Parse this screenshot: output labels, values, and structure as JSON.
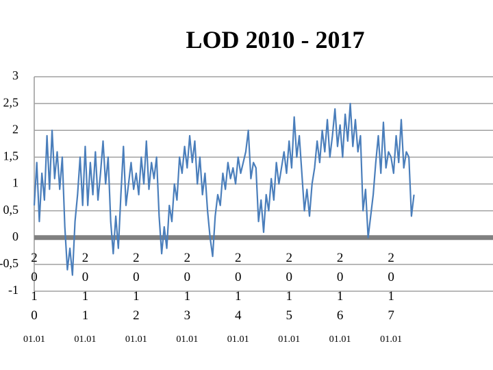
{
  "chart_data": {
    "type": "line",
    "title": "LOD 2010 - 2017",
    "x": [
      2010,
      2010.05,
      2010.1,
      2010.15,
      2010.2,
      2010.25,
      2010.3,
      2010.35,
      2010.4,
      2010.45,
      2010.5,
      2010.55,
      2010.6,
      2010.65,
      2010.7,
      2010.75,
      2010.8,
      2010.85,
      2010.9,
      2010.95,
      2011,
      2011.05,
      2011.1,
      2011.15,
      2011.2,
      2011.25,
      2011.3,
      2011.35,
      2011.4,
      2011.45,
      2011.5,
      2011.55,
      2011.6,
      2011.65,
      2011.7,
      2011.75,
      2011.8,
      2011.85,
      2011.9,
      2011.95,
      2012,
      2012.05,
      2012.1,
      2012.15,
      2012.2,
      2012.25,
      2012.3,
      2012.35,
      2012.4,
      2012.45,
      2012.5,
      2012.55,
      2012.6,
      2012.65,
      2012.7,
      2012.75,
      2012.8,
      2012.85,
      2012.9,
      2012.95,
      2013,
      2013.05,
      2013.1,
      2013.15,
      2013.2,
      2013.25,
      2013.3,
      2013.35,
      2013.4,
      2013.45,
      2013.5,
      2013.55,
      2013.6,
      2013.65,
      2013.7,
      2013.75,
      2013.8,
      2013.85,
      2013.9,
      2013.95,
      2014,
      2014.05,
      2014.1,
      2014.15,
      2014.2,
      2014.25,
      2014.3,
      2014.35,
      2014.4,
      2014.45,
      2014.5,
      2014.55,
      2014.6,
      2014.65,
      2014.7,
      2014.75,
      2014.8,
      2014.85,
      2014.9,
      2014.95,
      2015,
      2015.05,
      2015.1,
      2015.15,
      2015.2,
      2015.25,
      2015.3,
      2015.35,
      2015.4,
      2015.45,
      2015.5,
      2015.55,
      2015.6,
      2015.65,
      2015.7,
      2015.75,
      2015.8,
      2015.85,
      2015.9,
      2015.95,
      2016,
      2016.05,
      2016.1,
      2016.15,
      2016.2,
      2016.25,
      2016.3,
      2016.35,
      2016.4,
      2016.45,
      2016.5,
      2016.55,
      2016.6,
      2016.65,
      2016.7,
      2016.75,
      2016.8,
      2016.85,
      2016.9,
      2016.95,
      2017,
      2017.05,
      2017.1,
      2017.15,
      2017.2,
      2017.25,
      2017.3,
      2017.35,
      2017.4,
      2017.45
    ],
    "series": [
      {
        "color": "#4a7ebb",
        "values": [
          0.6,
          1.4,
          0.3,
          1.2,
          0.7,
          1.9,
          0.9,
          2.0,
          1.1,
          1.6,
          0.9,
          1.5,
          0.2,
          -0.6,
          -0.2,
          -0.7,
          0.3,
          0.8,
          1.5,
          0.6,
          1.7,
          0.6,
          1.4,
          0.8,
          1.6,
          0.7,
          1.2,
          1.8,
          1.0,
          1.5,
          0.3,
          -0.3,
          0.4,
          -0.2,
          0.8,
          1.7,
          0.6,
          1.0,
          1.4,
          0.9,
          1.2,
          0.8,
          1.5,
          1.0,
          1.8,
          0.9,
          1.4,
          1.1,
          1.5,
          0.4,
          -0.3,
          0.2,
          -0.2,
          0.6,
          0.3,
          1.0,
          0.7,
          1.5,
          1.2,
          1.7,
          1.3,
          1.9,
          1.4,
          1.8,
          1.0,
          1.5,
          0.8,
          1.2,
          0.5,
          0.0,
          -0.35,
          0.4,
          0.8,
          0.6,
          1.2,
          0.9,
          1.4,
          1.1,
          1.3,
          1.0,
          1.5,
          1.2,
          1.4,
          1.6,
          2.0,
          1.1,
          1.4,
          1.3,
          0.3,
          0.7,
          0.1,
          0.8,
          0.5,
          1.1,
          0.7,
          1.4,
          1.0,
          1.3,
          1.6,
          1.2,
          1.8,
          1.3,
          2.25,
          1.5,
          1.9,
          1.2,
          0.5,
          0.9,
          0.4,
          1.0,
          1.3,
          1.8,
          1.4,
          2.0,
          1.6,
          2.2,
          1.5,
          1.9,
          2.4,
          1.7,
          2.1,
          1.5,
          2.3,
          1.8,
          2.5,
          1.7,
          2.2,
          1.6,
          1.9,
          0.5,
          0.9,
          0.0,
          0.4,
          0.8,
          1.4,
          1.9,
          1.2,
          2.15,
          1.3,
          1.6,
          1.5,
          1.2,
          1.9,
          1.4,
          2.2,
          1.3,
          1.6,
          1.5,
          0.4,
          0.8
        ]
      }
    ],
    "xlim": [
      2010,
      2019
    ],
    "xticks": [
      2010,
      2011,
      2012,
      2013,
      2014,
      2015,
      2016,
      2017
    ],
    "xtick_sublabels": [
      "01.01",
      "01.01",
      "01.01",
      "01.01",
      "01.01",
      "01.01",
      "01.01",
      "01.01"
    ],
    "ylim": [
      -1,
      3
    ],
    "yticks": [
      {
        "value": -1,
        "label": "-1"
      },
      {
        "value": -0.5,
        "label": "-0,5"
      },
      0,
      {
        "value": 0.5,
        "label": "0,5"
      },
      1,
      {
        "value": 1.5,
        "label": "1,5"
      },
      2,
      {
        "value": 2.5,
        "label": "2,5"
      },
      3
    ],
    "grid": true
  }
}
